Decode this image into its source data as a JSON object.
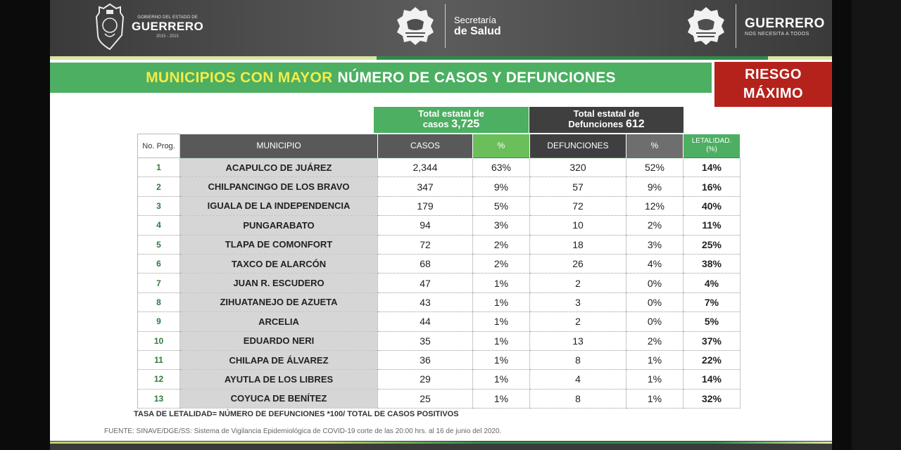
{
  "header": {
    "gobierno": {
      "small": "GOBIERNO DEL ESTADO DE",
      "big": "GUERRERO",
      "years": "2015 - 2021"
    },
    "secretaria": {
      "line1": "Secretaría",
      "line2": "de Salud"
    },
    "guerrero": {
      "big": "GUERRERO",
      "small": "NOS NECESITA A TODOS"
    }
  },
  "title": {
    "yellow": "MUNICIPIOS CON MAYOR",
    "white": "NÚMERO  DE CASOS Y DEFUNCIONES"
  },
  "risk": {
    "line1": "RIESGO",
    "line2": "MÁXIMO"
  },
  "totals": {
    "cases": {
      "label1": "Total estatal de",
      "label2": "casos",
      "value": "3,725"
    },
    "deaths": {
      "label1": "Total estatal de",
      "label2": "Defunciones",
      "value": "612"
    }
  },
  "table": {
    "headers": {
      "prog": "No. Prog.",
      "municipio": "MUNICIPIO",
      "casos": "CASOS",
      "pct_casos": "%",
      "defunciones": "DEFUNCIONES",
      "pct_def": "%",
      "letalidad1": "LETALIDAD.",
      "letalidad2": "(%)"
    },
    "rows": [
      {
        "prog": "1",
        "municipio": "ACAPULCO  DE JUÁREZ",
        "casos": "2,344",
        "pct_casos": "63%",
        "defunciones": "320",
        "pct_def": "52%",
        "letalidad": "14%"
      },
      {
        "prog": "2",
        "municipio": "CHILPANCINGO DE LOS BRAVO",
        "casos": "347",
        "pct_casos": "9%",
        "defunciones": "57",
        "pct_def": "9%",
        "letalidad": "16%"
      },
      {
        "prog": "3",
        "municipio": "IGUALA DE LA INDEPENDENCIA",
        "casos": "179",
        "pct_casos": "5%",
        "defunciones": "72",
        "pct_def": "12%",
        "letalidad": "40%"
      },
      {
        "prog": "4",
        "municipio": "PUNGARABATO",
        "casos": "94",
        "pct_casos": "3%",
        "defunciones": "10",
        "pct_def": "2%",
        "letalidad": "11%"
      },
      {
        "prog": "5",
        "municipio": "TLAPA DE COMONFORT",
        "casos": "72",
        "pct_casos": "2%",
        "defunciones": "18",
        "pct_def": "3%",
        "letalidad": "25%"
      },
      {
        "prog": "6",
        "municipio": "TAXCO DE ALARCÓN",
        "casos": "68",
        "pct_casos": "2%",
        "defunciones": "26",
        "pct_def": "4%",
        "letalidad": "38%"
      },
      {
        "prog": "7",
        "municipio": "JUAN R. ESCUDERO",
        "casos": "47",
        "pct_casos": "1%",
        "defunciones": "2",
        "pct_def": "0%",
        "letalidad": "4%"
      },
      {
        "prog": "8",
        "municipio": "ZIHUATANEJO DE AZUETA",
        "casos": "43",
        "pct_casos": "1%",
        "defunciones": "3",
        "pct_def": "0%",
        "letalidad": "7%"
      },
      {
        "prog": "9",
        "municipio": "ARCELIA",
        "casos": "44",
        "pct_casos": "1%",
        "defunciones": "2",
        "pct_def": "0%",
        "letalidad": "5%"
      },
      {
        "prog": "10",
        "municipio": "EDUARDO NERI",
        "casos": "35",
        "pct_casos": "1%",
        "defunciones": "13",
        "pct_def": "2%",
        "letalidad": "37%"
      },
      {
        "prog": "11",
        "municipio": "CHILAPA DE ÁLVAREZ",
        "casos": "36",
        "pct_casos": "1%",
        "defunciones": "8",
        "pct_def": "1%",
        "letalidad": "22%"
      },
      {
        "prog": "12",
        "municipio": "AYUTLA DE LOS LIBRES",
        "casos": "29",
        "pct_casos": "1%",
        "defunciones": "4",
        "pct_def": "1%",
        "letalidad": "14%"
      },
      {
        "prog": "13",
        "municipio": "COYUCA DE BENÍTEZ",
        "casos": "25",
        "pct_casos": "1%",
        "defunciones": "8",
        "pct_def": "1%",
        "letalidad": "32%"
      }
    ]
  },
  "formula": "TASA DE LETALIDAD= NÚMERO DE DEFUNCIONES *100/ TOTAL DE CASOS POSITIVOS",
  "source": "FUENTE: SINAVE/DGE/SS: Sistema de Vigilancia Epidemiológica de COVID-19 corte de las 20:00 hrs. al 16 de junio del 2020.",
  "colors": {
    "green": "#4caf62",
    "dark_gray": "#3f3f3f",
    "red": "#b5221c",
    "yellow": "#f4ec45"
  }
}
